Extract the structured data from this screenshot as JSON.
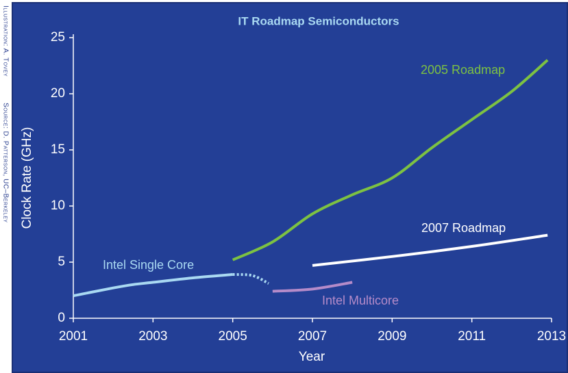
{
  "chart_data": {
    "type": "line",
    "title": "IT Roadmap Semiconductors",
    "xlabel": "Year",
    "ylabel": "Clock Rate (GHz)",
    "credits": [
      "Illustration: A. Tovey",
      "Source: D. Patterson, UC–Berkeley"
    ],
    "xlim": [
      2001,
      2013
    ],
    "ylim": [
      0,
      25
    ],
    "xticks": [
      2001,
      2003,
      2005,
      2007,
      2009,
      2011,
      2013
    ],
    "yticks": [
      0,
      5,
      10,
      15,
      20,
      25
    ],
    "series": [
      {
        "name": "Intel Single Core",
        "color": "#a9d9f2",
        "style": "solid",
        "x": [
          2001,
          2002,
          2002.5,
          2003,
          2004,
          2005
        ],
        "values": [
          2.0,
          2.7,
          3.0,
          3.2,
          3.6,
          3.9
        ]
      },
      {
        "color": "#a9d9f2",
        "style": "dotted",
        "x": [
          2005,
          2005.5,
          2005.9
        ],
        "values": [
          3.9,
          3.8,
          3.1
        ]
      },
      {
        "name": "Intel Multicore",
        "color": "#b58bc9",
        "style": "solid",
        "x": [
          2006,
          2007,
          2008
        ],
        "values": [
          2.4,
          2.6,
          3.2
        ]
      },
      {
        "name": "2005 Roadmap",
        "color": "#7dc242",
        "style": "solid",
        "x": [
          2005,
          2006,
          2007,
          2008,
          2009,
          2010,
          2011,
          2012,
          2012.9
        ],
        "values": [
          5.2,
          6.8,
          9.3,
          11.0,
          12.5,
          15.2,
          17.7,
          20.2,
          23.0
        ]
      },
      {
        "name": "2007 Roadmap",
        "color": "#ffffff",
        "style": "solid",
        "x": [
          2007,
          2009,
          2011,
          2012.9
        ],
        "values": [
          4.7,
          5.5,
          6.4,
          7.4
        ]
      }
    ]
  }
}
